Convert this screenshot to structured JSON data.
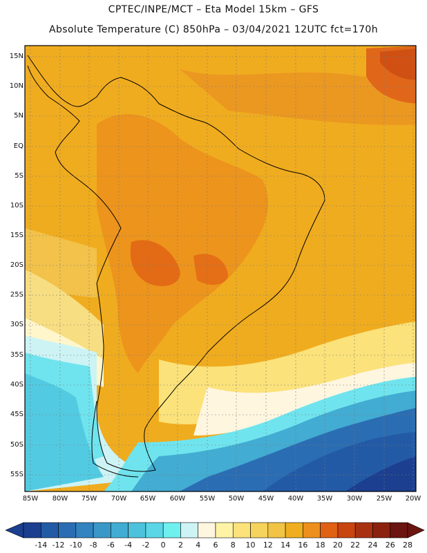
{
  "header": {
    "line1": "CPTEC/INPE/MCT –  Eta Model 15km – GFS",
    "line2": "Absolute Temperature (C) 850hPa – 03/04/2021 12UTC fct=170h"
  },
  "map": {
    "lat_labels": [
      "15N",
      "10N",
      "5N",
      "EQ",
      "5S",
      "10S",
      "15S",
      "20S",
      "25S",
      "30S",
      "35S",
      "40S",
      "45S",
      "50S",
      "55S"
    ],
    "lon_labels": [
      "85W",
      "80W",
      "75W",
      "70W",
      "65W",
      "60W",
      "55W",
      "50W",
      "45W",
      "40W",
      "35W",
      "30W",
      "25W",
      "20W"
    ]
  },
  "legend": {
    "labels": [
      "-14",
      "-12",
      "-10",
      "-8",
      "-6",
      "-4",
      "-2",
      "0",
      "2",
      "4",
      "6",
      "8",
      "10",
      "12",
      "14",
      "16",
      "18",
      "20",
      "22",
      "24",
      "26",
      "28"
    ],
    "colors": [
      "#1c3f8f",
      "#235aa6",
      "#2b6db3",
      "#3283bf",
      "#3a98c8",
      "#42acd2",
      "#4cc2dc",
      "#5ad6e6",
      "#6ff0ef",
      "#cdf3f5",
      "#fff6e0",
      "#fff4a6",
      "#fbe27a",
      "#f6d35c",
      "#f1c446",
      "#eeae1f",
      "#ec8f1c",
      "#e06014",
      "#c8450f",
      "#a83210",
      "#8b220f",
      "#6b1410"
    ]
  }
}
